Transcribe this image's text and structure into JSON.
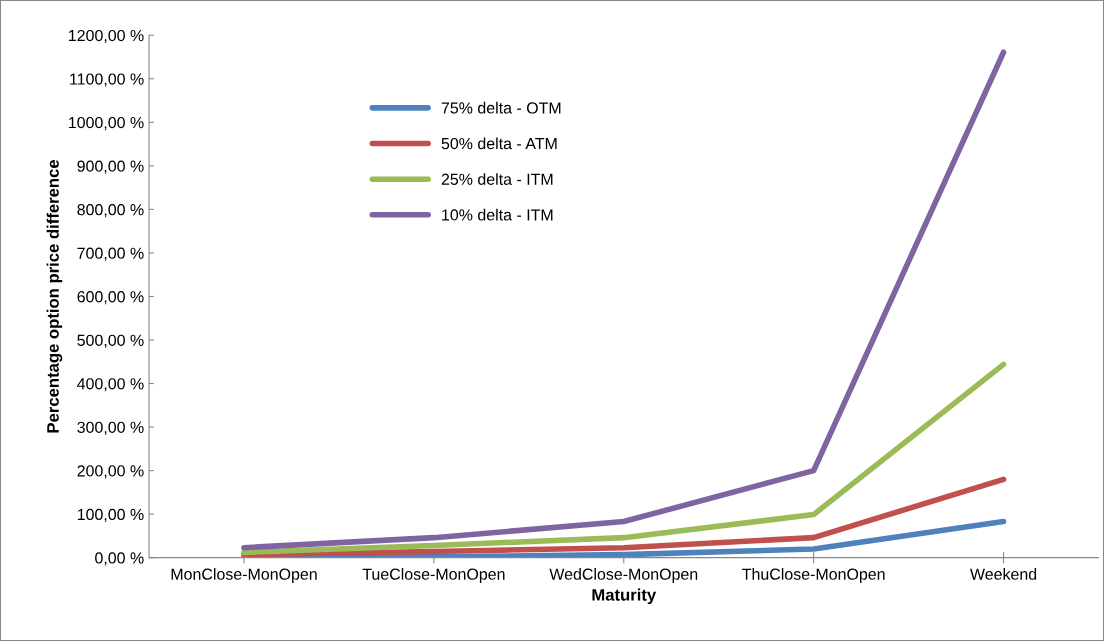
{
  "chart_data": {
    "type": "line",
    "xlabel": "Maturity",
    "ylabel": "Percentage option price difference",
    "categories": [
      "MonClose-MonOpen",
      "TueClose-MonOpen",
      "WedClose-MonOpen",
      "ThuClose-MonOpen",
      "Weekend"
    ],
    "series": [
      {
        "name": "75% delta - OTM",
        "color": "#4f81bd",
        "values": [
          1,
          2,
          7,
          20,
          83
        ]
      },
      {
        "name": "50% delta - ATM",
        "color": "#c0504d",
        "values": [
          7,
          14,
          23,
          46,
          180
        ]
      },
      {
        "name": "25% delta - ITM",
        "color": "#9bbb59",
        "values": [
          12,
          28,
          46,
          99,
          444
        ]
      },
      {
        "name": "10% delta - ITM",
        "color": "#8064a2",
        "values": [
          23,
          46,
          83,
          200,
          1161
        ]
      }
    ],
    "ylim": [
      0,
      1200
    ],
    "yticks": [
      {
        "value": 0,
        "label": "0,00 %"
      },
      {
        "value": 100,
        "label": "100,00 %"
      },
      {
        "value": 200,
        "label": "200,00 %"
      },
      {
        "value": 300,
        "label": "300,00 %"
      },
      {
        "value": 400,
        "label": "400,00 %"
      },
      {
        "value": 500,
        "label": "500,00 %"
      },
      {
        "value": 600,
        "label": "600,00 %"
      },
      {
        "value": 700,
        "label": "700,00 %"
      },
      {
        "value": 800,
        "label": "800,00 %"
      },
      {
        "value": 900,
        "label": "900,00 %"
      },
      {
        "value": 1000,
        "label": "1000,00 %"
      },
      {
        "value": 1100,
        "label": "1100,00 %"
      },
      {
        "value": 1200,
        "label": "1200,00 %"
      }
    ],
    "grid": false,
    "legend": "top left",
    "marker": "none",
    "line_style": "solid"
  }
}
